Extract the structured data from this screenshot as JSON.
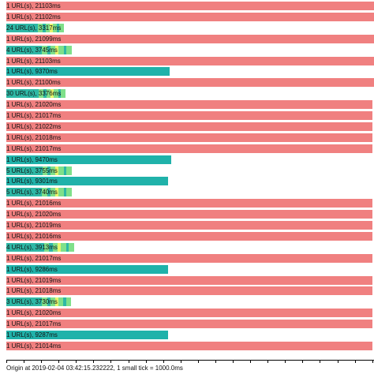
{
  "colors": {
    "timeout": "#f08080",
    "ok": "#20b2aa",
    "multi_a": "#2eb8a6",
    "multi_b": "#7fe08a",
    "multi_c": "#e5f56e"
  },
  "rows": [
    {
      "label": "1 URL(s), 21103ms",
      "status": "timeout",
      "ms": 21103
    },
    {
      "label": "1 URL(s), 21102ms",
      "status": "timeout",
      "ms": 21102
    },
    {
      "label": "24 URL(s), 3317ms",
      "status": "multi",
      "ms": 3317
    },
    {
      "label": "1 URL(s), 21099ms",
      "status": "timeout",
      "ms": 21099
    },
    {
      "label": "4 URL(s), 3745ms",
      "status": "multi",
      "ms": 3745
    },
    {
      "label": "1 URL(s), 21103ms",
      "status": "timeout",
      "ms": 21103
    },
    {
      "label": "1 URL(s), 9370ms",
      "status": "ok",
      "ms": 9370
    },
    {
      "label": "1 URL(s), 21100ms",
      "status": "timeout",
      "ms": 21100
    },
    {
      "label": "30 URL(s), 3376ms",
      "status": "multi",
      "ms": 3376
    },
    {
      "label": "1 URL(s), 21020ms",
      "status": "timeout",
      "ms": 21020
    },
    {
      "label": "1 URL(s), 21017ms",
      "status": "timeout",
      "ms": 21017
    },
    {
      "label": "1 URL(s), 21022ms",
      "status": "timeout",
      "ms": 21022
    },
    {
      "label": "1 URL(s), 21018ms",
      "status": "timeout",
      "ms": 21018
    },
    {
      "label": "1 URL(s), 21017ms",
      "status": "timeout",
      "ms": 21017
    },
    {
      "label": "1 URL(s), 9470ms",
      "status": "ok",
      "ms": 9470
    },
    {
      "label": "5 URL(s), 3755ms",
      "status": "multi",
      "ms": 3755
    },
    {
      "label": "1 URL(s), 9301ms",
      "status": "ok",
      "ms": 9301
    },
    {
      "label": "5 URL(s), 3740ms",
      "status": "multi",
      "ms": 3740
    },
    {
      "label": "1 URL(s), 21016ms",
      "status": "timeout",
      "ms": 21016
    },
    {
      "label": "1 URL(s), 21020ms",
      "status": "timeout",
      "ms": 21020
    },
    {
      "label": "1 URL(s), 21019ms",
      "status": "timeout",
      "ms": 21019
    },
    {
      "label": "1 URL(s), 21016ms",
      "status": "timeout",
      "ms": 21016
    },
    {
      "label": "4 URL(s), 3913ms",
      "status": "multi",
      "ms": 3913
    },
    {
      "label": "1 URL(s), 21017ms",
      "status": "timeout",
      "ms": 21017
    },
    {
      "label": "1 URL(s), 9286ms",
      "status": "ok",
      "ms": 9286
    },
    {
      "label": "1 URL(s), 21019ms",
      "status": "timeout",
      "ms": 21019
    },
    {
      "label": "1 URL(s), 21018ms",
      "status": "timeout",
      "ms": 21018
    },
    {
      "label": "3 URL(s), 3730ms",
      "status": "multi",
      "ms": 3730
    },
    {
      "label": "1 URL(s), 21020ms",
      "status": "timeout",
      "ms": 21020
    },
    {
      "label": "1 URL(s), 21017ms",
      "status": "timeout",
      "ms": 21017
    },
    {
      "label": "1 URL(s), 9287ms",
      "status": "ok",
      "ms": 9287
    },
    {
      "label": "1 URL(s), 21014ms",
      "status": "timeout",
      "ms": 21014
    }
  ],
  "axis": {
    "origin_label": "Origin at 2019-02-04 03:42:15.232222, 1 small tick = 1000.0ms",
    "tick_ms": 1000,
    "max_ms": 21103
  }
}
